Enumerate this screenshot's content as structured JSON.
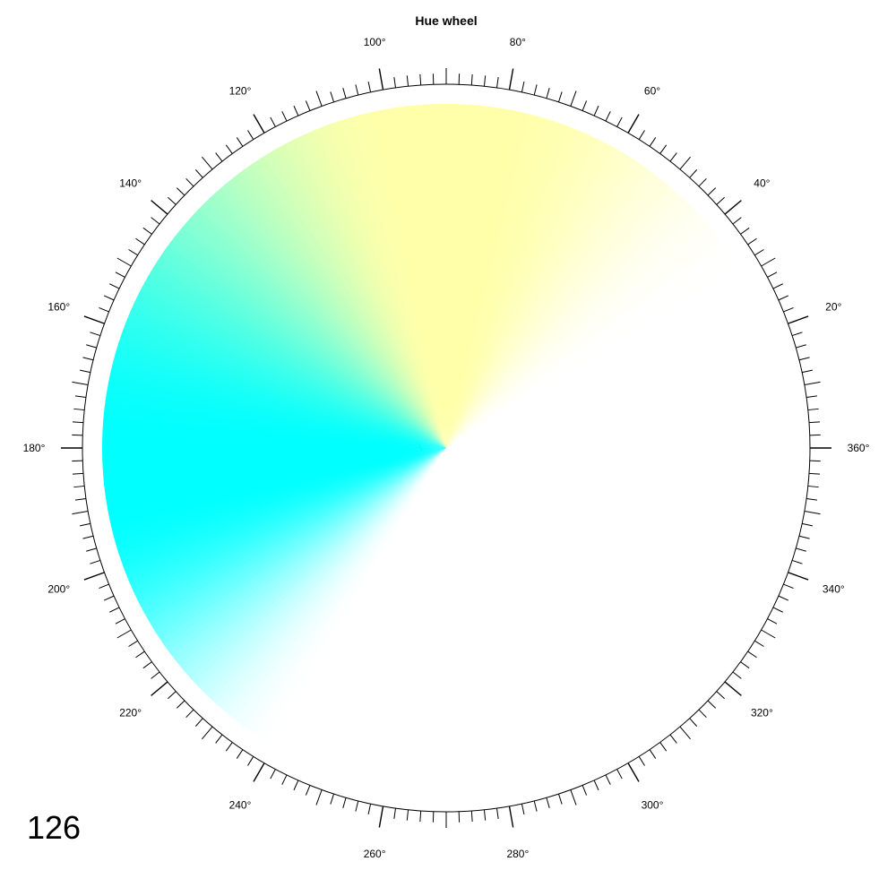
{
  "chart_data": {
    "type": "hue-wheel",
    "title": "Hue wheel",
    "hue_range_deg": [
      0,
      360
    ],
    "tick_step_deg": 2,
    "major_tick_step_deg": 20,
    "label_unit": "°",
    "tick_labels": [
      "20°",
      "40°",
      "60°",
      "80°",
      "100°",
      "120°",
      "140°",
      "160°",
      "180°",
      "200°",
      "220°",
      "240°",
      "260°",
      "280°",
      "300°",
      "320°",
      "340°",
      "360°"
    ],
    "filled_sector_deg": [
      30,
      240
    ],
    "colors": {
      "yellow": "#ffffaa",
      "cyan": "#00ffff",
      "white": "#ffffff",
      "stroke": "#000000"
    }
  },
  "plot_number": "126"
}
